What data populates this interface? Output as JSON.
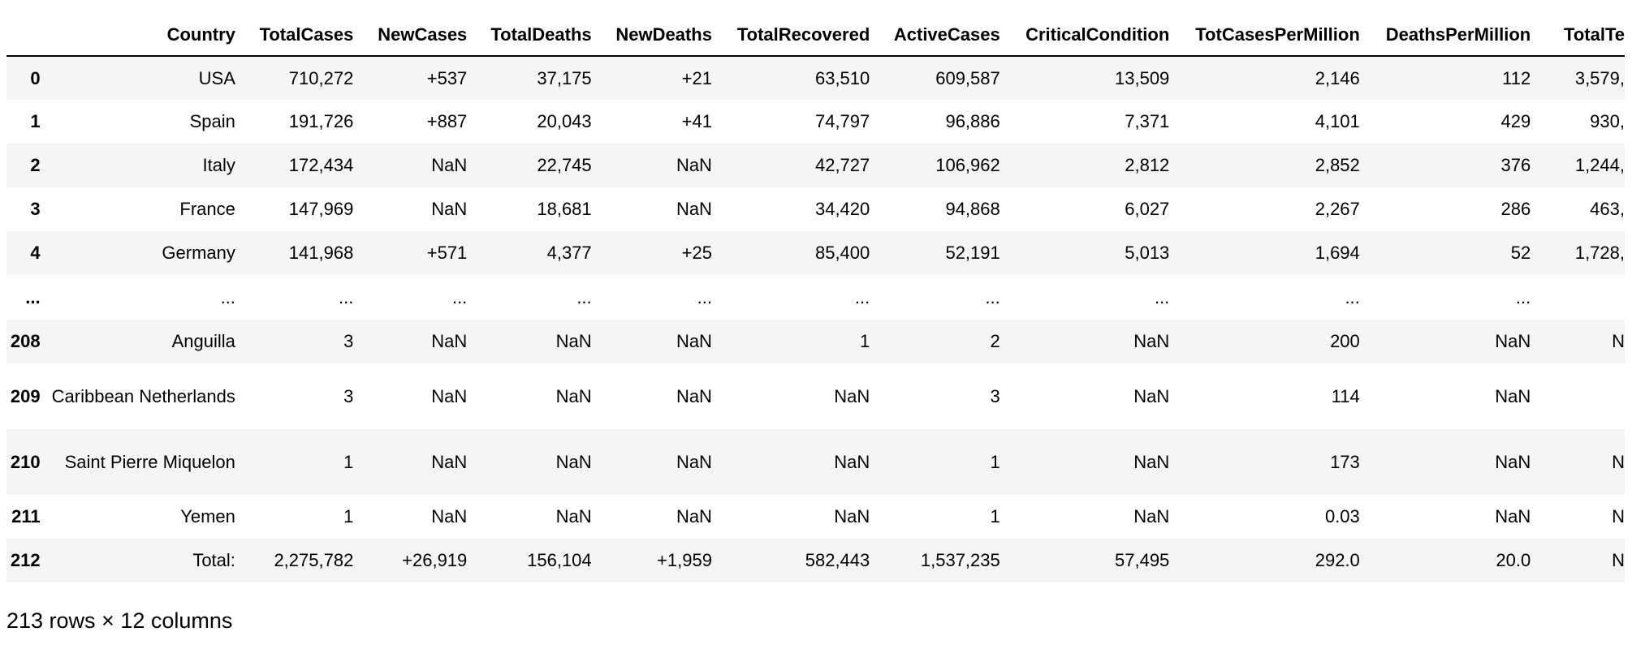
{
  "table": {
    "columns": [
      "",
      "Country",
      "TotalCases",
      "NewCases",
      "TotalDeaths",
      "NewDeaths",
      "TotalRecovered",
      "ActiveCases",
      "CriticalCondition",
      "TotCasesPerMillion",
      "DeathsPerMillion",
      "TotalTe"
    ],
    "rows": [
      {
        "index": "0",
        "cells": [
          "USA",
          "710,272",
          "+537",
          "37,175",
          "+21",
          "63,510",
          "609,587",
          "13,509",
          "2,146",
          "112",
          "3,579,"
        ]
      },
      {
        "index": "1",
        "cells": [
          "Spain",
          "191,726",
          "+887",
          "20,043",
          "+41",
          "74,797",
          "96,886",
          "7,371",
          "4,101",
          "429",
          "930,"
        ]
      },
      {
        "index": "2",
        "cells": [
          "Italy",
          "172,434",
          "NaN",
          "22,745",
          "NaN",
          "42,727",
          "106,962",
          "2,812",
          "2,852",
          "376",
          "1,244,"
        ]
      },
      {
        "index": "3",
        "cells": [
          "France",
          "147,969",
          "NaN",
          "18,681",
          "NaN",
          "34,420",
          "94,868",
          "6,027",
          "2,267",
          "286",
          "463,"
        ]
      },
      {
        "index": "4",
        "cells": [
          "Germany",
          "141,968",
          "+571",
          "4,377",
          "+25",
          "85,400",
          "52,191",
          "5,013",
          "1,694",
          "52",
          "1,728,"
        ]
      },
      {
        "index": "...",
        "cells": [
          "...",
          "...",
          "...",
          "...",
          "...",
          "...",
          "...",
          "...",
          "...",
          "...",
          ""
        ]
      },
      {
        "index": "208",
        "cells": [
          "Anguilla",
          "3",
          "NaN",
          "NaN",
          "NaN",
          "1",
          "2",
          "NaN",
          "200",
          "NaN",
          "N"
        ]
      },
      {
        "index": "209",
        "cells": [
          "Caribbean Netherlands",
          "3",
          "NaN",
          "NaN",
          "NaN",
          "NaN",
          "3",
          "NaN",
          "114",
          "NaN",
          ""
        ]
      },
      {
        "index": "210",
        "cells": [
          "Saint Pierre Miquelon",
          "1",
          "NaN",
          "NaN",
          "NaN",
          "NaN",
          "1",
          "NaN",
          "173",
          "NaN",
          "N"
        ]
      },
      {
        "index": "211",
        "cells": [
          "Yemen",
          "1",
          "NaN",
          "NaN",
          "NaN",
          "NaN",
          "1",
          "NaN",
          "0.03",
          "NaN",
          "N"
        ]
      },
      {
        "index": "212",
        "cells": [
          "Total:",
          "2,275,782",
          "+26,919",
          "156,104",
          "+1,959",
          "582,443",
          "1,537,235",
          "57,495",
          "292.0",
          "20.0",
          "N"
        ]
      }
    ]
  },
  "summary": "213 rows × 12 columns"
}
